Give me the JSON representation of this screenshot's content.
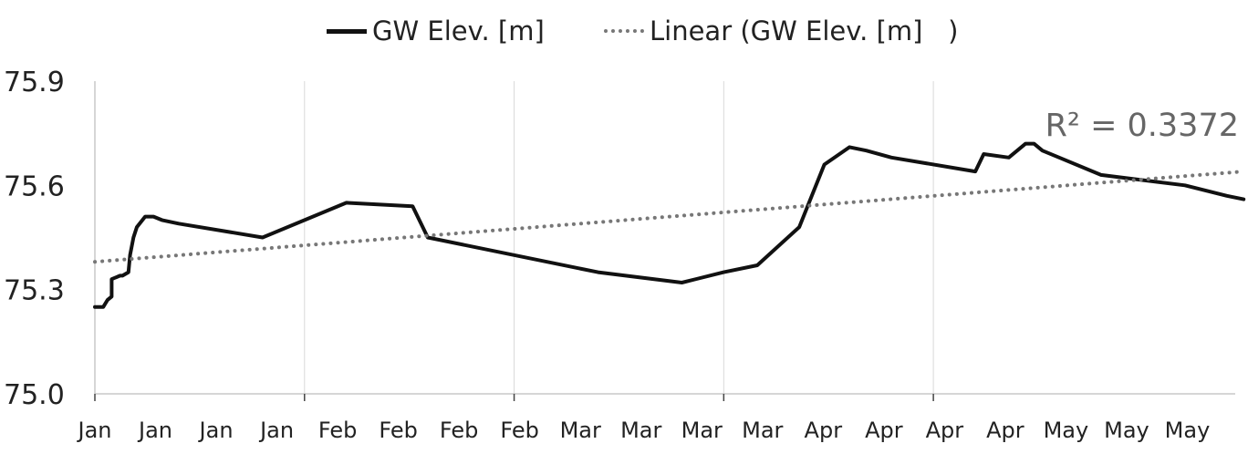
{
  "chart_data": {
    "type": "line",
    "title": "",
    "xlabel": "",
    "ylabel": "",
    "ylim": [
      75.0,
      75.9
    ],
    "yticks": [
      "75.9",
      "75.6",
      "75.3",
      "75.0"
    ],
    "yticks_values": [
      75.9,
      75.6,
      75.3,
      75.0
    ],
    "xlim": [
      0,
      136
    ],
    "xticks_major": [
      0,
      25,
      50,
      75,
      100
    ],
    "xtick_labels": [
      "Jan",
      "Jan",
      "Jan",
      "Jan",
      "Feb",
      "Feb",
      "Feb",
      "Feb",
      "Mar",
      "Mar",
      "Mar",
      "Mar",
      "Apr",
      "Apr",
      "Apr",
      "Apr",
      "May",
      "May",
      "May"
    ],
    "grid": "vertical",
    "legend_position": "top",
    "series": [
      {
        "name": "GW Elev. [m]",
        "style": "solid",
        "color": "#111111",
        "x": [
          0,
          1,
          1.5,
          2,
          2,
          3,
          3.3,
          4,
          4.2,
          4.6,
          5.0,
          6,
          7,
          8,
          10,
          20,
          30,
          37.9,
          39.7,
          60,
          70,
          75,
          79,
          84,
          87,
          90,
          92,
          95,
          105,
          106,
          109,
          111,
          112,
          113,
          115,
          120,
          130,
          135,
          137
        ],
        "values": [
          75.25,
          75.25,
          75.27,
          75.28,
          75.33,
          75.34,
          75.34,
          75.35,
          75.4,
          75.45,
          75.48,
          75.51,
          75.51,
          75.5,
          75.49,
          75.45,
          75.55,
          75.54,
          75.45,
          75.35,
          75.32,
          75.35,
          75.37,
          75.48,
          75.66,
          75.71,
          75.7,
          75.68,
          75.64,
          75.69,
          75.68,
          75.72,
          75.72,
          75.7,
          75.68,
          75.63,
          75.6,
          75.57,
          75.56
        ]
      },
      {
        "name": "Linear (GW Elev. [m]   )",
        "style": "dotted",
        "color": "#777777",
        "x": [
          0,
          137
        ],
        "values": [
          75.38,
          75.64
        ]
      }
    ],
    "annotations": [
      {
        "text": "R² = 0.3372",
        "x": 130,
        "y": 75.75
      }
    ]
  },
  "legend": {
    "series1": "GW Elev. [m]",
    "series2": "Linear (GW Elev. [m]   )"
  }
}
